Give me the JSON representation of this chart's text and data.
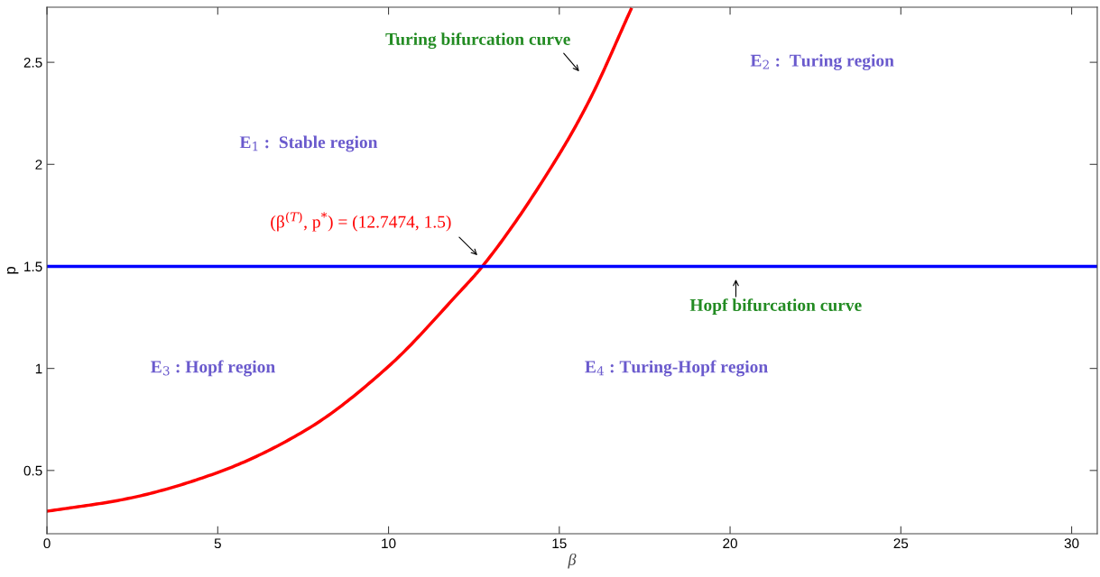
{
  "chart_data": {
    "type": "line",
    "xlabel": "β",
    "ylabel": "p",
    "xlim": [
      0,
      30.75
    ],
    "ylim": [
      0.19,
      2.77
    ],
    "xticks": [
      0,
      5,
      10,
      15,
      20,
      25,
      30
    ],
    "yticks": [
      0.5,
      1,
      1.5,
      2,
      2.5
    ],
    "grid": false,
    "legend": false,
    "marker": "none",
    "line_style": "solid",
    "series": [
      {
        "color": "#ff0000",
        "x": [
          0,
          2.3,
          5,
          7.6,
          10,
          12,
          12.7474,
          15,
          15.9,
          17.1
        ],
        "values": [
          0.3,
          0.36,
          0.49,
          0.7,
          1.01,
          1.36,
          1.5,
          2.05,
          2.32,
          2.76
        ]
      },
      {
        "color": "#0000ff",
        "x": [
          0,
          30.75
        ],
        "values": [
          1.5,
          1.5
        ]
      }
    ],
    "annotations": [
      "Turing bifurcation curve",
      "(β$^{(T)}$, p$^{*}$) = (12.7474, 1.5)",
      "Hopf bifurcation curve",
      "E$_{1}$ :  Stable region",
      "E$_{2}$ :  Turing region",
      "E$_{3}$ : Hopf region",
      "E$_{4}$ : Turing-Hopf region"
    ]
  }
}
